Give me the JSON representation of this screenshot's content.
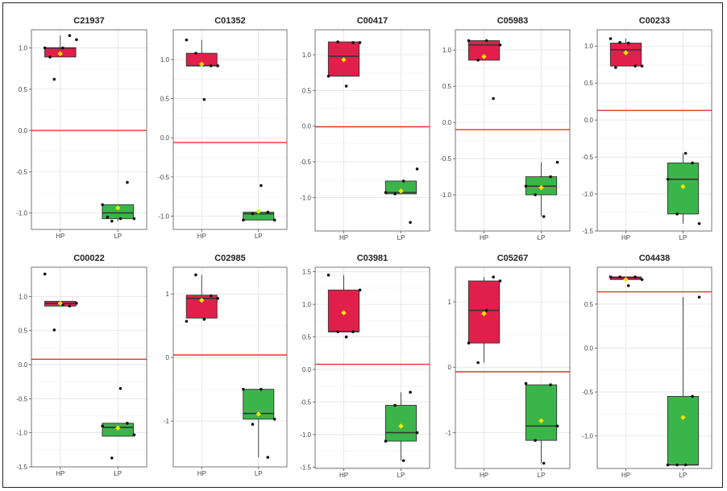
{
  "colors": {
    "hp_box": "#E0204A",
    "lp_box": "#3BB54A",
    "mean_marker": "#F5E600",
    "hline": "#E8302A",
    "points": "#111111"
  },
  "chart_data": [
    {
      "type": "boxplot",
      "title": "C21937",
      "categories": [
        "HP",
        "LP"
      ],
      "ylim": [
        -1.2,
        1.22
      ],
      "yticks": [
        "1.0",
        "0.5",
        "0.0",
        "-0.5",
        "-1.0"
      ],
      "ytick_values": [
        1.0,
        0.5,
        0.0,
        -0.5,
        -1.0
      ],
      "hline": 0.0,
      "boxes": [
        {
          "q1": 0.89,
          "median": 1.0,
          "q3": 1.0,
          "min": 0.89,
          "max": 1.15,
          "mean": 0.93,
          "points": [
            1.0,
            0.62,
            1.0,
            1.15,
            1.1,
            0.89
          ]
        },
        {
          "q1": -1.07,
          "median": -1.0,
          "q3": -0.9,
          "min": -1.1,
          "max": -0.9,
          "mean": -0.94,
          "points": [
            -0.9,
            -1.1,
            -1.07,
            -0.63,
            -1.07,
            -1.05
          ]
        }
      ]
    },
    {
      "type": "boxplot",
      "title": "C01352",
      "categories": [
        "HP",
        "LP"
      ],
      "ylim": [
        -1.17,
        1.38
      ],
      "yticks": [
        "1.0",
        "0.5",
        "0.0",
        "-0.5",
        "-1.0"
      ],
      "ytick_values": [
        1.0,
        0.5,
        0.0,
        -0.5,
        -1.0
      ],
      "hline": -0.06,
      "boxes": [
        {
          "q1": 0.92,
          "median": 0.92,
          "q3": 1.08,
          "min": 0.92,
          "max": 1.25,
          "mean": 0.94,
          "points": [
            1.25,
            1.08,
            0.49,
            0.92,
            0.92
          ]
        },
        {
          "q1": -1.05,
          "median": -0.97,
          "q3": -0.95,
          "min": -1.05,
          "max": -0.95,
          "mean": -0.94,
          "points": [
            -1.05,
            -0.97,
            -0.61,
            -0.95,
            -1.05
          ]
        }
      ]
    },
    {
      "type": "boxplot",
      "title": "C00417",
      "categories": [
        "HP",
        "LP"
      ],
      "ylim": [
        -1.47,
        1.35
      ],
      "yticks": [
        "1.0",
        "0.5",
        "0.0",
        "-0.5",
        "-1.0"
      ],
      "ytick_values": [
        1.0,
        0.5,
        0.0,
        -0.5,
        -1.0
      ],
      "hline": -0.01,
      "boxes": [
        {
          "q1": 0.7,
          "median": 0.98,
          "q3": 1.18,
          "min": 0.7,
          "max": 1.18,
          "mean": 0.93,
          "points": [
            0.7,
            1.18,
            0.56,
            1.17,
            1.17
          ]
        },
        {
          "q1": -0.95,
          "median": -0.93,
          "q3": -0.77,
          "min": -0.95,
          "max": -0.77,
          "mean": -0.91,
          "points": [
            -0.93,
            -0.95,
            -0.77,
            -1.35,
            -0.6
          ]
        }
      ]
    },
    {
      "type": "boxplot",
      "title": "C05983",
      "categories": [
        "HP",
        "LP"
      ],
      "ylim": [
        -1.5,
        1.28
      ],
      "yticks": [
        "1.0",
        "0.5",
        "0.0",
        "-0.5",
        "-1.0"
      ],
      "ytick_values": [
        1.0,
        0.5,
        0.0,
        -0.5,
        -1.0
      ],
      "hline": -0.1,
      "boxes": [
        {
          "q1": 0.86,
          "median": 1.07,
          "q3": 1.13,
          "min": 0.86,
          "max": 1.13,
          "mean": 0.91,
          "points": [
            1.13,
            0.86,
            1.13,
            0.33,
            1.07
          ]
        },
        {
          "q1": -1.0,
          "median": -0.88,
          "q3": -0.75,
          "min": -1.3,
          "max": -0.55,
          "mean": -0.9,
          "points": [
            -0.88,
            -1.0,
            -1.3,
            -0.75,
            -0.55
          ]
        }
      ]
    },
    {
      "type": "boxplot",
      "title": "C00233",
      "categories": [
        "HP",
        "LP"
      ],
      "ylim": [
        -1.5,
        1.22
      ],
      "yticks": [
        "1.0",
        "0.5",
        "0.0",
        "-0.5",
        "-1.0",
        "-1.5"
      ],
      "ytick_values": [
        1.0,
        0.5,
        0.0,
        -0.5,
        -1.0,
        -1.5
      ],
      "hline": 0.13,
      "boxes": [
        {
          "q1": 0.73,
          "median": 0.95,
          "q3": 1.04,
          "min": 0.73,
          "max": 1.1,
          "mean": 0.91,
          "points": [
            1.1,
            1.05,
            1.04,
            0.73,
            0.73,
            0.71
          ]
        },
        {
          "q1": -1.27,
          "median": -0.8,
          "q3": -0.58,
          "min": -1.4,
          "max": -0.45,
          "mean": -0.9,
          "points": [
            -0.8,
            -1.27,
            -0.45,
            -0.58,
            -1.4
          ]
        }
      ]
    },
    {
      "type": "boxplot",
      "title": "C00022",
      "categories": [
        "HP",
        "LP"
      ],
      "ylim": [
        -1.5,
        1.43
      ],
      "yticks": [
        "1.0",
        "0.5",
        "0.0",
        "-0.5",
        "-1.0",
        "-1.5"
      ],
      "ytick_values": [
        1.0,
        0.5,
        0.0,
        -0.5,
        -1.0,
        -1.5
      ],
      "hline": 0.08,
      "boxes": [
        {
          "q1": 0.86,
          "median": 0.9,
          "q3": 0.93,
          "min": 0.86,
          "max": 0.93,
          "mean": 0.9,
          "points": [
            1.33,
            0.51,
            0.88,
            0.86,
            0.9
          ]
        },
        {
          "q1": -1.05,
          "median": -0.92,
          "q3": -0.86,
          "min": -1.05,
          "max": -0.86,
          "mean": -0.93,
          "points": [
            -0.9,
            -1.37,
            -0.35,
            -0.86,
            -1.03
          ]
        }
      ]
    },
    {
      "type": "boxplot",
      "title": "C02985",
      "categories": [
        "HP",
        "LP"
      ],
      "ylim": [
        -1.72,
        1.42
      ],
      "yticks": [
        "1",
        "0",
        "-1"
      ],
      "ytick_values": [
        1,
        0,
        -1
      ],
      "hline": 0.04,
      "boxes": [
        {
          "q1": 0.62,
          "median": 0.93,
          "q3": 0.98,
          "min": 0.62,
          "max": 1.3,
          "mean": 0.9,
          "points": [
            0.57,
            1.3,
            0.6,
            0.97,
            0.93
          ]
        },
        {
          "q1": -0.97,
          "median": -0.88,
          "q3": -0.5,
          "min": -1.57,
          "max": -0.5,
          "mean": -0.89,
          "points": [
            -0.5,
            -1.05,
            -0.5,
            -1.57,
            -0.97
          ]
        }
      ]
    },
    {
      "type": "boxplot",
      "title": "C03981",
      "categories": [
        "HP",
        "LP"
      ],
      "ylim": [
        -1.52,
        1.57
      ],
      "yticks": [
        "1.5",
        "1.0",
        "0.5",
        "0.0",
        "-0.5",
        "-1.0",
        "-1.5"
      ],
      "ytick_values": [
        1.5,
        1.0,
        0.5,
        0.0,
        -0.5,
        -1.0,
        -1.5
      ],
      "hline": 0.08,
      "boxes": [
        {
          "q1": 0.58,
          "median": 0.58,
          "q3": 1.22,
          "min": 0.58,
          "max": 1.45,
          "mean": 0.87,
          "points": [
            1.45,
            0.58,
            0.5,
            0.58,
            1.22
          ]
        },
        {
          "q1": -1.1,
          "median": -0.97,
          "q3": -0.55,
          "min": -1.4,
          "max": -0.35,
          "mean": -0.87,
          "points": [
            -1.1,
            -0.55,
            -1.4,
            -0.35,
            -0.97
          ]
        }
      ]
    },
    {
      "type": "boxplot",
      "title": "C05267",
      "categories": [
        "HP",
        "LP"
      ],
      "ylim": [
        -1.55,
        1.53
      ],
      "yticks": [
        "1",
        "0",
        "-1"
      ],
      "ytick_values": [
        1,
        0,
        -1
      ],
      "hline": -0.07,
      "boxes": [
        {
          "q1": 0.37,
          "median": 0.87,
          "q3": 1.32,
          "min": 0.07,
          "max": 1.38,
          "mean": 0.82,
          "points": [
            0.37,
            0.07,
            0.87,
            1.38,
            1.32
          ]
        },
        {
          "q1": -1.12,
          "median": -0.9,
          "q3": -0.27,
          "min": -1.47,
          "max": -0.27,
          "mean": -0.82,
          "points": [
            -0.25,
            -1.12,
            -1.47,
            -0.27,
            -0.9
          ]
        }
      ]
    },
    {
      "type": "boxplot",
      "title": "C04438",
      "categories": [
        "HP",
        "LP"
      ],
      "ylim": [
        -1.37,
        0.92
      ],
      "yticks": [
        "0.5",
        "0.0",
        "-0.5",
        "-1.0"
      ],
      "ytick_values": [
        0.5,
        0.0,
        -0.5,
        -1.0
      ],
      "hline": 0.64,
      "boxes": [
        {
          "q1": 0.78,
          "median": 0.8,
          "q3": 0.81,
          "min": 0.78,
          "max": 0.81,
          "mean": 0.78,
          "points": [
            0.81,
            0.81,
            0.71,
            0.81,
            0.78
          ]
        },
        {
          "q1": -1.33,
          "median": -1.33,
          "q3": -0.55,
          "min": -1.33,
          "max": 0.58,
          "mean": -0.79,
          "points": [
            -1.33,
            -1.33,
            -1.33,
            -0.55,
            0.58
          ]
        }
      ]
    }
  ]
}
